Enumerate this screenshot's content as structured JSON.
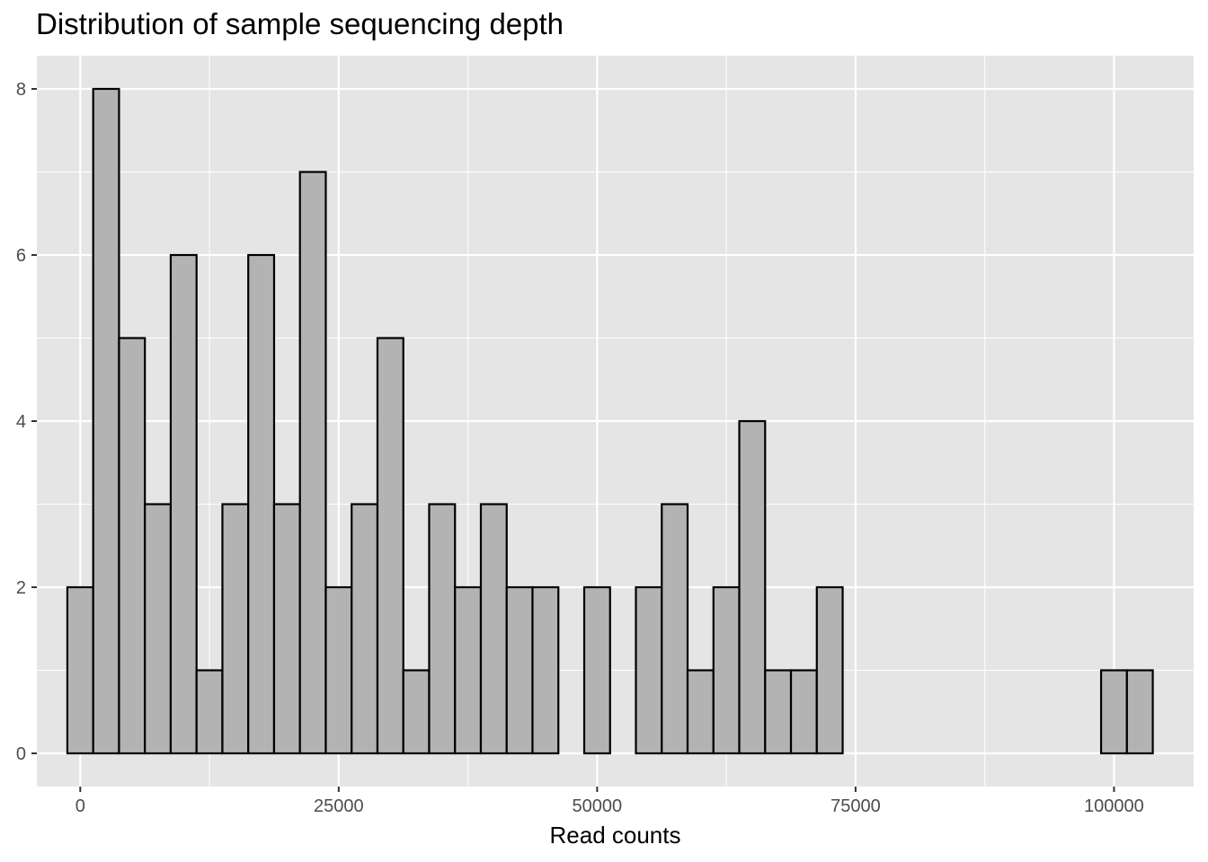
{
  "chart_data": {
    "type": "bar",
    "subtype": "histogram",
    "title": "Distribution of sample sequencing depth",
    "xlabel": "Read counts",
    "ylabel": "",
    "xlim": [
      -4200,
      107700
    ],
    "ylim": [
      -0.4,
      8.4
    ],
    "x_ticks": [
      0,
      25000,
      50000,
      75000,
      100000
    ],
    "x_tick_labels": [
      "0",
      "25000",
      "50000",
      "75000",
      "100000"
    ],
    "y_ticks": [
      0,
      2,
      4,
      6,
      8
    ],
    "y_tick_labels": [
      "0",
      "2",
      "4",
      "6",
      "8"
    ],
    "bin_width": 2500,
    "first_bin_center": 0,
    "counts": [
      2,
      8,
      5,
      3,
      6,
      1,
      3,
      6,
      3,
      7,
      2,
      3,
      5,
      1,
      3,
      2,
      3,
      2,
      2,
      0,
      2,
      0,
      2,
      3,
      1,
      2,
      4,
      1,
      1,
      2,
      0,
      0,
      0,
      0,
      0,
      0,
      0,
      0,
      0,
      0,
      1,
      1
    ],
    "grid": true,
    "legend": "none",
    "colors": {
      "panel_background": "#e5e5e5",
      "grid": "#ffffff",
      "bar_fill": "#b3b3b3",
      "bar_outline": "#000000",
      "tick_text": "#4d4d4d"
    }
  }
}
